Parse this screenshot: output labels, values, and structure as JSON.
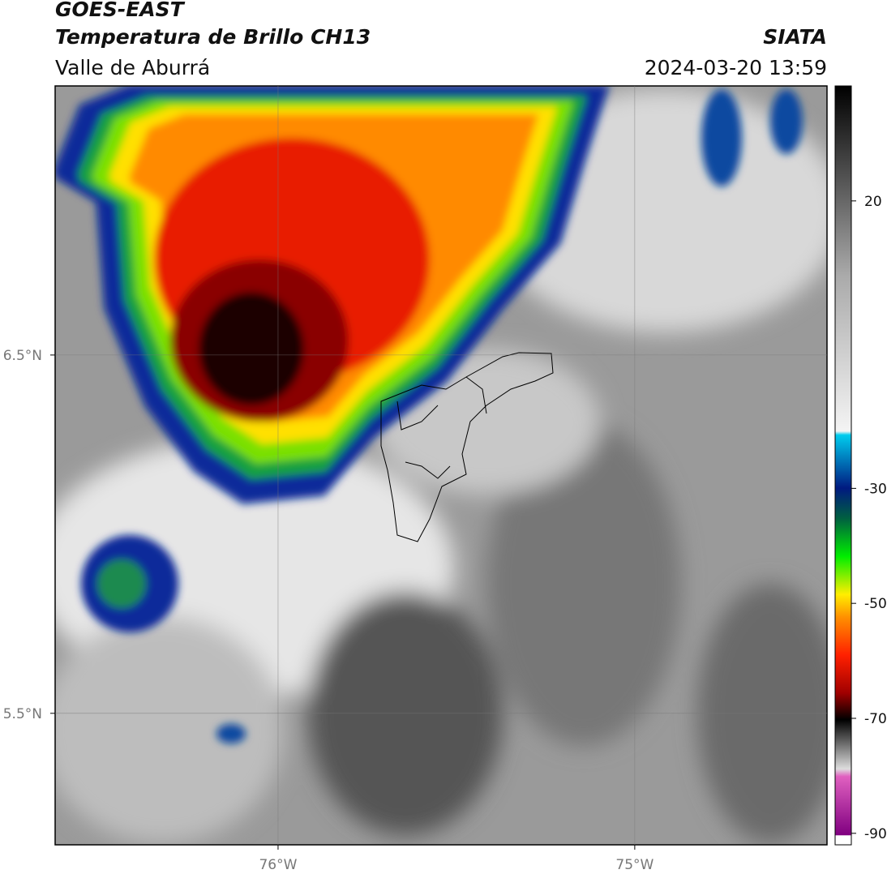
{
  "header": {
    "title": "GOES-EAST",
    "subtitle": "Temperatura de Brillo CH13",
    "region": "Valle de Aburrá",
    "source": "SIATA",
    "timestamp": "2024-03-20 13:59"
  },
  "map": {
    "xlim": [
      -76.625,
      -74.461
    ],
    "ylim": [
      5.133,
      7.251
    ],
    "xticks": [
      {
        "value": -76,
        "label": "76°W"
      },
      {
        "value": -75,
        "label": "75°W"
      }
    ],
    "yticks": [
      {
        "value": 6.5,
        "label": "6.5°N"
      },
      {
        "value": 5.5,
        "label": "5.5°N"
      }
    ],
    "grid": true
  },
  "colorbar": {
    "lim": [
      -92,
      40
    ],
    "ticks": [
      20,
      -30,
      -50,
      -70,
      -90
    ]
  }
}
